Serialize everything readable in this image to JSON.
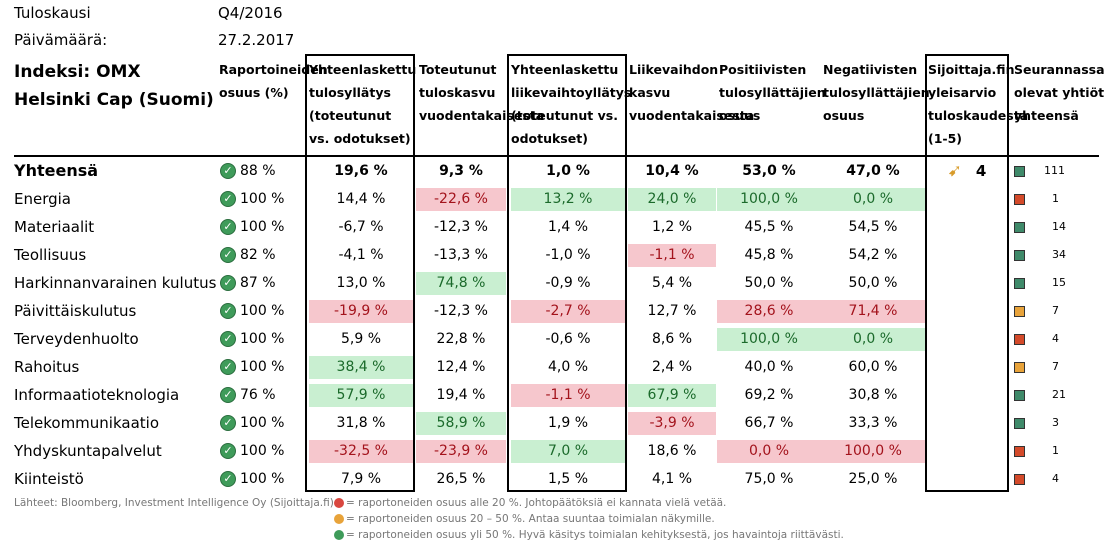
{
  "meta": {
    "period_label": "Tuloskausi",
    "period_value": "Q4/2016",
    "date_label": "Päivämäärä:",
    "date_value": "27.2.2017"
  },
  "header": {
    "index": "Indeksi: OMX Helsinki Cap (Suomi)",
    "col_reported": "Raportoineiden osuus (%)",
    "col_eps_surprise": "Yhteenlaskettu tulosyllätys (toteutunut vs. odotukset)",
    "col_eps_growth": "Toteutunut tuloskasvu vuodentakaisesta",
    "col_rev_surprise": "Yhteenlaskettu liikevaihtoyllätys (toteutunut vs. odotukset)",
    "col_rev_growth": "Liikevaihdon kasvu vuodentakaisesta",
    "col_positive": "Positiivisten tulosyllättäjien osuus",
    "col_negative": "Negatiivisten tulosyllättäjien osuus",
    "col_estimate": "Sijoittaja.fin yleisarvio tuloskaudesta (1-5)",
    "col_followed": "Seurannassa olevat yhtiöt yhteensä"
  },
  "total": {
    "label": "Yhteensä",
    "reported": "88 %",
    "eps_surprise": "19,6 %",
    "eps_growth": "9,3 %",
    "rev_surprise": "1,0 %",
    "rev_growth": "10,4 %",
    "positive": "53,0 %",
    "negative": "47,0 %",
    "estimate": "4",
    "followed": "111",
    "status_color": "#3f8a6a"
  },
  "rows": [
    {
      "label": "Energia",
      "reported": "100 %",
      "eps_surprise": "14,4 %",
      "eps_growth": "-22,6 %",
      "rev_surprise": "13,2 %",
      "rev_growth": "24,0 %",
      "positive": "100,0 %",
      "negative": "0,0 %",
      "followed": "1",
      "status_color": "#d44a2a"
    },
    {
      "label": "Materiaalit",
      "reported": "100 %",
      "eps_surprise": "-6,7 %",
      "eps_growth": "-12,3 %",
      "rev_surprise": "1,4 %",
      "rev_growth": "1,2 %",
      "positive": "45,5 %",
      "negative": "54,5 %",
      "followed": "14",
      "status_color": "#3f8a6a"
    },
    {
      "label": "Teollisuus",
      "reported": "82 %",
      "eps_surprise": "-4,1 %",
      "eps_growth": "-13,3 %",
      "rev_surprise": "-1,0 %",
      "rev_growth": "-1,1 %",
      "positive": "45,8 %",
      "negative": "54,2 %",
      "followed": "34",
      "status_color": "#3f8a6a"
    },
    {
      "label": "Harkinnanvarainen kulutus",
      "reported": "87 %",
      "eps_surprise": "13,0 %",
      "eps_growth": "74,8 %",
      "rev_surprise": "-0,9 %",
      "rev_growth": "5,4 %",
      "positive": "50,0 %",
      "negative": "50,0 %",
      "followed": "15",
      "status_color": "#3f8a6a"
    },
    {
      "label": "Päivittäiskulutus",
      "reported": "100 %",
      "eps_surprise": "-19,9 %",
      "eps_growth": "-12,3 %",
      "rev_surprise": "-2,7 %",
      "rev_growth": "12,7 %",
      "positive": "28,6 %",
      "negative": "71,4 %",
      "followed": "7",
      "status_color": "#e8a33a"
    },
    {
      "label": "Terveydenhuolto",
      "reported": "100 %",
      "eps_surprise": "5,9 %",
      "eps_growth": "22,8 %",
      "rev_surprise": "-0,6 %",
      "rev_growth": "8,6 %",
      "positive": "100,0 %",
      "negative": "0,0 %",
      "followed": "4",
      "status_color": "#d44a2a"
    },
    {
      "label": "Rahoitus",
      "reported": "100 %",
      "eps_surprise": "38,4 %",
      "eps_growth": "12,4 %",
      "rev_surprise": "4,0 %",
      "rev_growth": "2,4 %",
      "positive": "40,0 %",
      "negative": "60,0 %",
      "followed": "7",
      "status_color": "#e8a33a"
    },
    {
      "label": "Informaatioteknologia",
      "reported": "76 %",
      "eps_surprise": "57,9 %",
      "eps_growth": "19,4 %",
      "rev_surprise": "-1,1 %",
      "rev_growth": "67,9 %",
      "positive": "69,2 %",
      "negative": "30,8 %",
      "followed": "21",
      "status_color": "#3f8a6a"
    },
    {
      "label": "Telekommunikaatio",
      "reported": "100 %",
      "eps_surprise": "31,8 %",
      "eps_growth": "58,9 %",
      "rev_surprise": "1,9 %",
      "rev_growth": "-3,9 %",
      "positive": "66,7 %",
      "negative": "33,3 %",
      "followed": "3",
      "status_color": "#3f8a6a"
    },
    {
      "label": "Yhdyskuntapalvelut",
      "reported": "100 %",
      "eps_surprise": "-32,5 %",
      "eps_growth": "-23,9 %",
      "rev_surprise": "7,0 %",
      "rev_growth": "18,6 %",
      "positive": "0,0 %",
      "negative": "100,0 %",
      "followed": "1",
      "status_color": "#d44a2a"
    },
    {
      "label": "Kiinteistö",
      "reported": "100 %",
      "eps_surprise": "7,9 %",
      "eps_growth": "26,5 %",
      "rev_surprise": "1,5 %",
      "rev_growth": "4,1 %",
      "positive": "75,0 %",
      "negative": "25,0 %",
      "followed": "4",
      "status_color": "#d44a2a"
    }
  ],
  "footer": {
    "sources": "Lähteet: Bloomberg, Investment Intelligence Oy (Sijoittaja.fi)",
    "legend_red": "= raportoneiden osuus alle 20 %. Johtopäätöksiä ei kannata vielä vetää.",
    "legend_orange": "= raportoneiden osuus 20 – 50 %. Antaa suuntaa toimialan näkymille.",
    "legend_green": "= raportoneiden osuus yli 50 %. Hyvä käsitys toimialan kehityksestä, jos havaintoja riittävästi."
  }
}
